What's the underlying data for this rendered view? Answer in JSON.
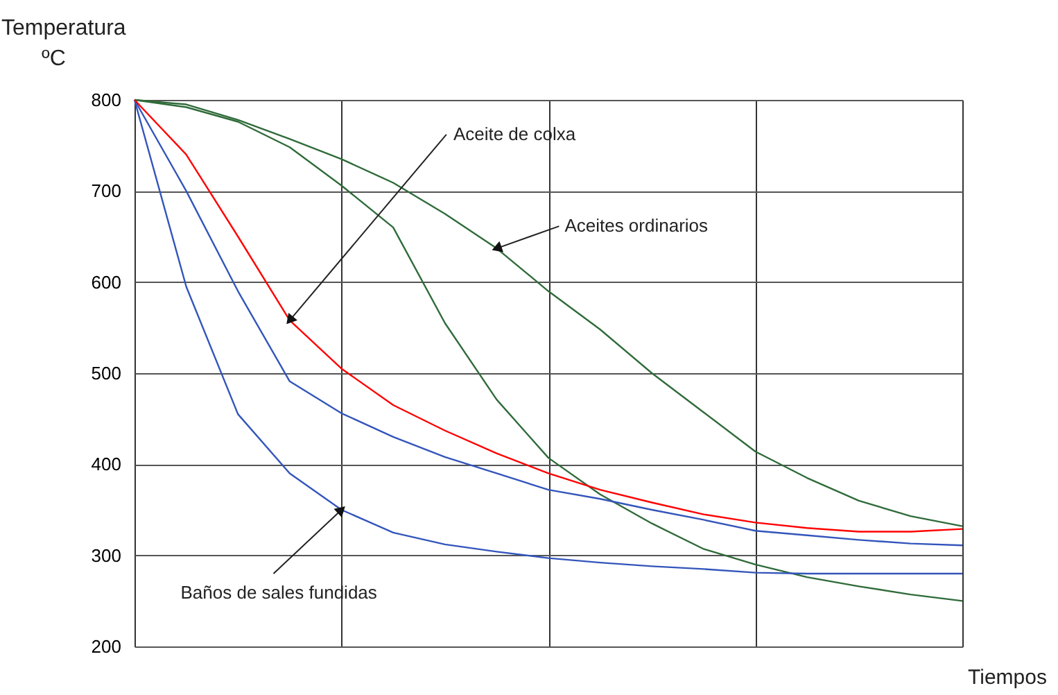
{
  "chart_data": {
    "type": "line",
    "xlabel": "Tiempos",
    "ylabel": "Temperatura\nºC",
    "categories": [
      null,
      null,
      null,
      null,
      null,
      null,
      null,
      null,
      null,
      null,
      null,
      null,
      null,
      null,
      null,
      null,
      null
    ],
    "ylim": [
      200,
      800
    ],
    "yticks": [
      200,
      300,
      400,
      500,
      600,
      700,
      800
    ],
    "grid": true,
    "marker": "none",
    "line_style": "solid",
    "series": [
      {
        "color": "#2f6b3a",
        "values": [
          800,
          795,
          778,
          757,
          735,
          709,
          675,
          637,
          590,
          548,
          500,
          457,
          414,
          385,
          360,
          343,
          332
        ]
      },
      {
        "color": "#2f6b3a",
        "values": [
          800,
          792,
          776,
          748,
          706,
          660,
          555,
          471,
          407,
          367,
          335,
          307,
          290,
          276,
          266,
          257,
          250
        ]
      },
      {
        "color": "#3355bb",
        "values": [
          800,
          700,
          590,
          491,
          456,
          430,
          408,
          390,
          372,
          362,
          350,
          339,
          327,
          322,
          317,
          313,
          311
        ]
      },
      {
        "color": "#3355bb",
        "values": [
          800,
          595,
          455,
          390,
          350,
          325,
          312,
          304,
          297,
          292,
          288,
          285,
          281,
          280,
          280,
          280,
          280
        ]
      },
      {
        "color": "#ff0000",
        "values": [
          800,
          740,
          650,
          558,
          505,
          465,
          437,
          412,
          390,
          372,
          358,
          345,
          336,
          330,
          326,
          326,
          329
        ]
      }
    ],
    "annotations": [
      "Aceite de colxa",
      "Aceites ordinarios",
      "Baños de sales fundidas"
    ]
  }
}
